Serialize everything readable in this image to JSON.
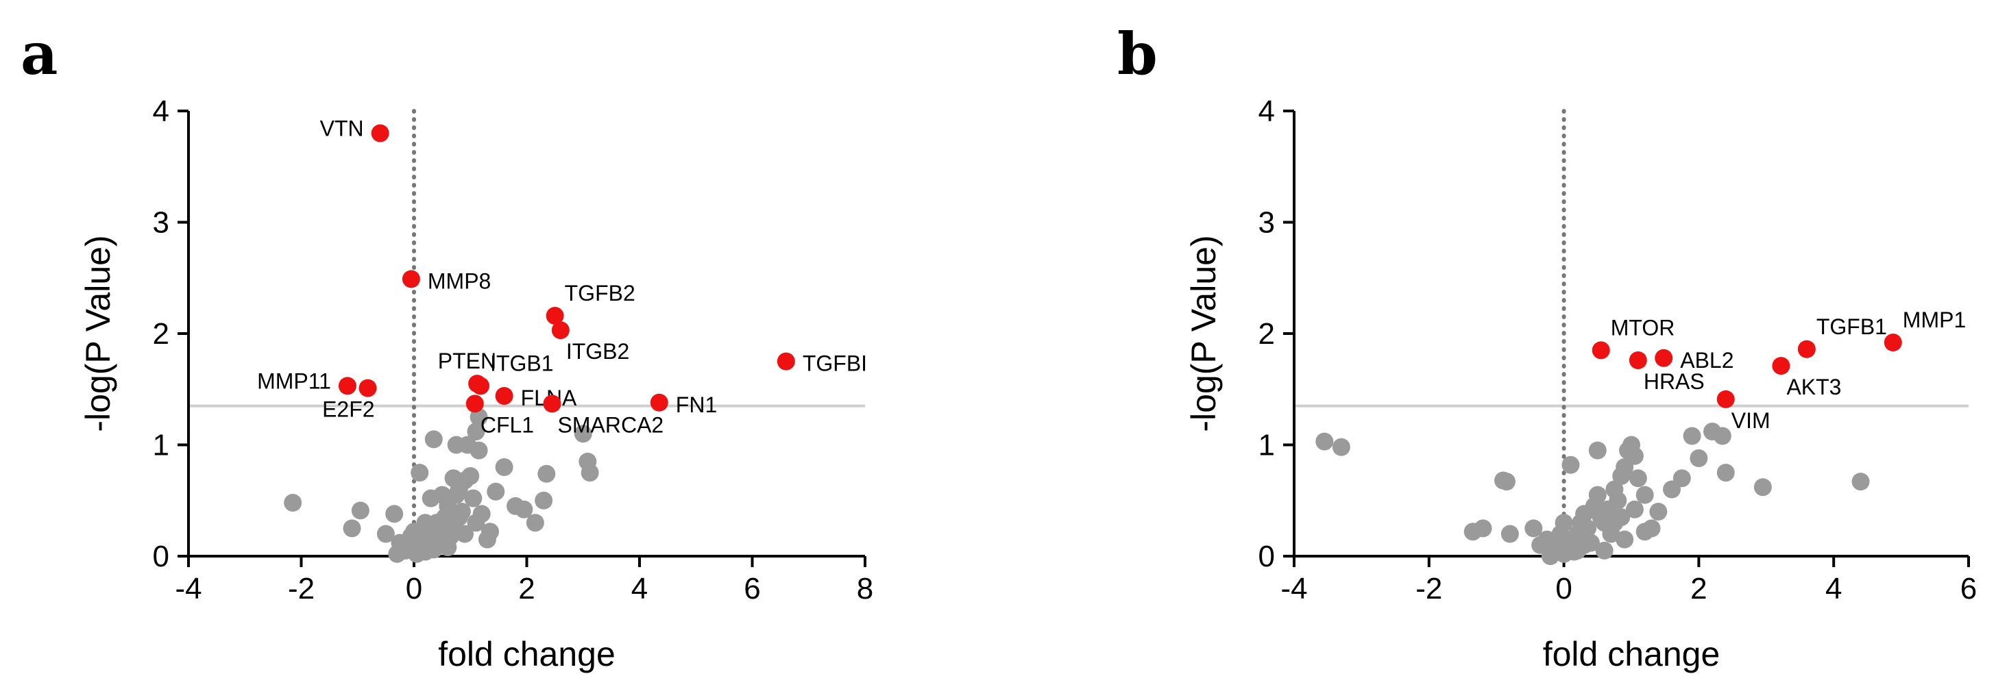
{
  "colors": {
    "significant": "#ee1111",
    "nonsignificant": "#9a9a9a",
    "threshold_line": "#cfcfcf",
    "zero_line": "#777777",
    "axis": "#000000"
  },
  "chart_data": [
    {
      "type": "scatter",
      "panel": "a",
      "xlabel": "fold change",
      "ylabel": "-log(P Value)",
      "xlim": [
        -4,
        8
      ],
      "ylim": [
        0,
        4
      ],
      "xticks": [
        -4,
        -2,
        0,
        2,
        4,
        6,
        8
      ],
      "yticks": [
        0,
        1,
        2,
        3,
        4
      ],
      "threshold_y": 1.35,
      "zero_x": 0,
      "significant": [
        {
          "label": "VTN",
          "x": -0.6,
          "y": 3.8,
          "label_side": "left"
        },
        {
          "label": "MMP8",
          "x": -0.05,
          "y": 2.49,
          "label_side": "right"
        },
        {
          "label": "TGFB2",
          "x": 2.5,
          "y": 2.16,
          "label_side": "upright"
        },
        {
          "label": "ITGB2",
          "x": 2.6,
          "y": 2.03,
          "label_side": "downright"
        },
        {
          "label": "TGFBI",
          "x": 6.6,
          "y": 1.75,
          "label_side": "right"
        },
        {
          "label": "PTEN",
          "x": 1.12,
          "y": 1.55,
          "label_side": "upleft"
        },
        {
          "label": "ITGB1",
          "x": 1.18,
          "y": 1.53,
          "label_side": "upright"
        },
        {
          "label": "FLNA",
          "x": 1.6,
          "y": 1.44,
          "label_side": "right"
        },
        {
          "label": "MMP11",
          "x": -1.18,
          "y": 1.53,
          "label_side": "left"
        },
        {
          "label": "E2F2",
          "x": -0.82,
          "y": 1.51,
          "label_side": "downleft"
        },
        {
          "label": "CFL1",
          "x": 1.08,
          "y": 1.37,
          "label_side": "downright"
        },
        {
          "label": "SMARCA2",
          "x": 2.45,
          "y": 1.37,
          "label_side": "downright"
        },
        {
          "label": "FN1",
          "x": 4.35,
          "y": 1.38,
          "label_side": "right"
        }
      ],
      "nonsignificant": [
        [
          -2.15,
          0.48
        ],
        [
          -0.95,
          0.41
        ],
        [
          -1.1,
          0.25
        ],
        [
          -0.35,
          0.38
        ],
        [
          -0.5,
          0.2
        ],
        [
          -0.25,
          0.12
        ],
        [
          -0.15,
          0.05
        ],
        [
          -0.1,
          0.1
        ],
        [
          0.05,
          0.02
        ],
        [
          0.1,
          0.08
        ],
        [
          0.15,
          0.12
        ],
        [
          0.2,
          0.04
        ],
        [
          0.25,
          0.15
        ],
        [
          0.3,
          0.2
        ],
        [
          0.35,
          0.06
        ],
        [
          0.4,
          0.3
        ],
        [
          0.45,
          0.22
        ],
        [
          0.5,
          0.12
        ],
        [
          0.55,
          0.35
        ],
        [
          0.6,
          0.45
        ],
        [
          0.65,
          0.18
        ],
        [
          0.7,
          0.25
        ],
        [
          0.75,
          0.55
        ],
        [
          0.8,
          0.6
        ],
        [
          0.85,
          0.4
        ],
        [
          0.9,
          0.68
        ],
        [
          1.0,
          0.72
        ],
        [
          1.05,
          0.52
        ],
        [
          1.1,
          0.3
        ],
        [
          1.2,
          0.38
        ],
        [
          1.35,
          0.22
        ],
        [
          1.45,
          0.58
        ],
        [
          1.6,
          0.8
        ],
        [
          1.8,
          0.45
        ],
        [
          1.95,
          0.42
        ],
        [
          2.15,
          0.3
        ],
        [
          2.3,
          0.5
        ],
        [
          2.35,
          0.74
        ],
        [
          3.0,
          1.1
        ],
        [
          3.08,
          0.85
        ],
        [
          3.12,
          0.75
        ],
        [
          0.1,
          0.75
        ],
        [
          0.3,
          0.52
        ],
        [
          0.5,
          0.55
        ],
        [
          0.7,
          0.7
        ],
        [
          0.95,
          1.0
        ],
        [
          1.1,
          1.12
        ],
        [
          1.15,
          0.95
        ],
        [
          0.75,
          1.0
        ],
        [
          0.8,
          0.35
        ],
        [
          0.4,
          0.1
        ],
        [
          0.2,
          0.3
        ],
        [
          -0.05,
          0.18
        ],
        [
          0.35,
          1.05
        ],
        [
          1.15,
          1.25
        ],
        [
          0.9,
          0.2
        ],
        [
          0.6,
          0.08
        ],
        [
          1.3,
          0.15
        ],
        [
          -0.3,
          0.02
        ],
        [
          0.0,
          0.22
        ]
      ]
    },
    {
      "type": "scatter",
      "panel": "b",
      "xlabel": "fold change",
      "ylabel": "-log(P Value)",
      "xlim": [
        -4,
        6
      ],
      "ylim": [
        0,
        4
      ],
      "xticks": [
        -4,
        -2,
        0,
        2,
        4,
        6
      ],
      "yticks": [
        0,
        1,
        2,
        3,
        4
      ],
      "threshold_y": 1.35,
      "zero_x": 0,
      "significant": [
        {
          "label": "MTOR",
          "x": 0.55,
          "y": 1.85,
          "label_side": "upright"
        },
        {
          "label": "HRAS",
          "x": 1.1,
          "y": 1.76,
          "label_side": "downright"
        },
        {
          "label": "ABL2",
          "x": 1.48,
          "y": 1.78,
          "label_side": "right"
        },
        {
          "label": "TGFB1",
          "x": 3.6,
          "y": 1.86,
          "label_side": "upright"
        },
        {
          "label": "MMP1",
          "x": 4.88,
          "y": 1.92,
          "label_side": "upright"
        },
        {
          "label": "AKT3",
          "x": 3.22,
          "y": 1.71,
          "label_side": "downright"
        },
        {
          "label": "VIM",
          "x": 2.4,
          "y": 1.41,
          "label_side": "downright"
        }
      ],
      "nonsignificant": [
        [
          -3.55,
          1.03
        ],
        [
          -3.3,
          0.98
        ],
        [
          -1.35,
          0.22
        ],
        [
          -1.2,
          0.25
        ],
        [
          -0.9,
          0.68
        ],
        [
          -0.85,
          0.67
        ],
        [
          -0.8,
          0.2
        ],
        [
          -0.45,
          0.25
        ],
        [
          -0.35,
          0.1
        ],
        [
          -0.25,
          0.15
        ],
        [
          -0.15,
          0.05
        ],
        [
          -0.1,
          0.12
        ],
        [
          0.0,
          0.02
        ],
        [
          0.05,
          0.08
        ],
        [
          0.1,
          0.1
        ],
        [
          0.15,
          0.04
        ],
        [
          0.2,
          0.2
        ],
        [
          0.25,
          0.3
        ],
        [
          0.3,
          0.38
        ],
        [
          0.35,
          0.25
        ],
        [
          0.4,
          0.12
        ],
        [
          0.45,
          0.45
        ],
        [
          0.5,
          0.55
        ],
        [
          0.55,
          0.35
        ],
        [
          0.6,
          0.3
        ],
        [
          0.65,
          0.42
        ],
        [
          0.7,
          0.2
        ],
        [
          0.75,
          0.6
        ],
        [
          0.8,
          0.5
        ],
        [
          0.85,
          0.72
        ],
        [
          0.9,
          0.8
        ],
        [
          0.95,
          0.95
        ],
        [
          1.0,
          1.0
        ],
        [
          1.05,
          0.9
        ],
        [
          1.1,
          0.7
        ],
        [
          1.2,
          0.55
        ],
        [
          1.3,
          0.25
        ],
        [
          1.4,
          0.4
        ],
        [
          1.6,
          0.6
        ],
        [
          1.75,
          0.7
        ],
        [
          1.9,
          1.08
        ],
        [
          2.0,
          0.88
        ],
        [
          2.2,
          1.12
        ],
        [
          2.35,
          1.08
        ],
        [
          2.4,
          0.75
        ],
        [
          2.95,
          0.62
        ],
        [
          4.4,
          0.67
        ],
        [
          0.5,
          0.95
        ],
        [
          0.1,
          0.82
        ],
        [
          0.9,
          0.15
        ],
        [
          1.2,
          0.22
        ],
        [
          0.3,
          0.1
        ],
        [
          -0.05,
          0.2
        ],
        [
          0.0,
          0.3
        ],
        [
          0.2,
          0.05
        ],
        [
          1.05,
          0.42
        ],
        [
          0.75,
          0.3
        ],
        [
          -0.2,
          0.0
        ],
        [
          0.6,
          0.05
        ],
        [
          0.85,
          0.35
        ]
      ]
    }
  ]
}
